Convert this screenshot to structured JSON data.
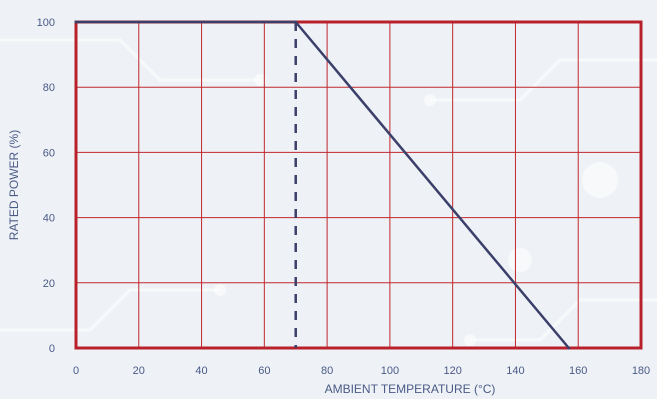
{
  "chart_data": {
    "type": "line",
    "title": "",
    "xlabel": "AMBIENT TEMPERATURE (°C)",
    "ylabel": "RATED POWER (%)",
    "xlim": [
      0,
      180
    ],
    "ylim": [
      0,
      100
    ],
    "xticks": [
      0,
      20,
      40,
      60,
      80,
      100,
      120,
      140,
      160,
      180
    ],
    "yticks": [
      0,
      20,
      40,
      60,
      80,
      100
    ],
    "x_tick_labels": [
      "0",
      "20",
      "40",
      "60",
      "80",
      "100",
      "120",
      "140",
      "160",
      "180"
    ],
    "y_tick_labels": [
      "0",
      "20",
      "40",
      "60",
      "80",
      "100"
    ],
    "grid": true,
    "series": [
      {
        "x": [
          0,
          70,
          157
        ],
        "y": [
          100,
          100,
          0
        ]
      }
    ],
    "reference_lines": [
      {
        "orientation": "vertical",
        "x": 70,
        "y_from": 0,
        "y_to": 100,
        "style": "dashed"
      }
    ],
    "colors": {
      "grid": "#c0272d",
      "frame": "#b8212b",
      "curve": "#3b3f69",
      "text": "#4a5a86"
    }
  }
}
